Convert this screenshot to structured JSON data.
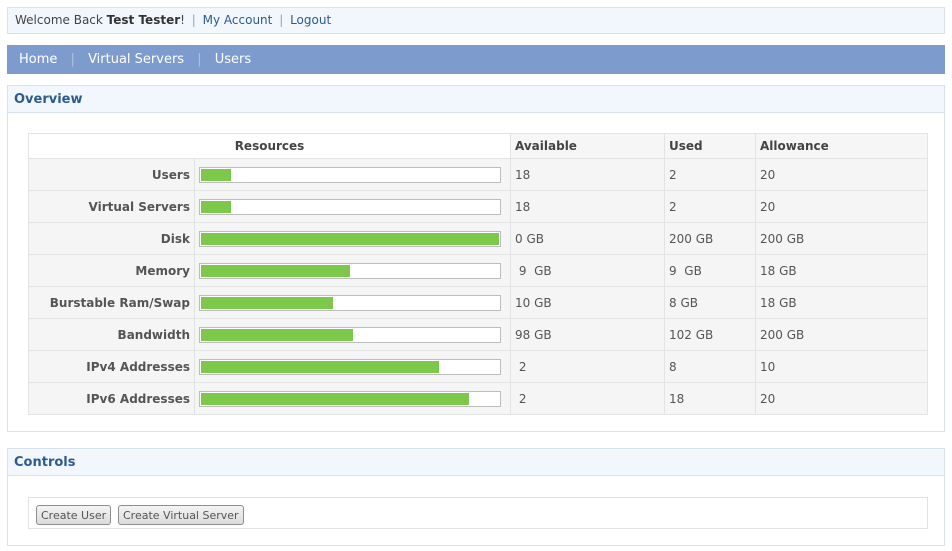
{
  "topbar": {
    "welcome_prefix": "Welcome Back",
    "user_name": "Test Tester",
    "welcome_suffix": "!",
    "sep": "|",
    "my_account": "My Account",
    "logout": "Logout"
  },
  "nav": {
    "items": [
      {
        "label": "Home"
      },
      {
        "label": "Virtual Servers"
      },
      {
        "label": "Users"
      }
    ],
    "sep": "|"
  },
  "overview": {
    "title": "Overview",
    "headers": {
      "resources": "Resources",
      "available": "Available",
      "used": "Used",
      "allowance": "Allowance"
    },
    "colors": {
      "bar_fill": "#7cc84b"
    },
    "rows": [
      {
        "label": "Users",
        "usage_fraction": 0.1,
        "available": "18",
        "used": "2",
        "allowance": "20"
      },
      {
        "label": "Virtual Servers",
        "usage_fraction": 0.1,
        "available": "18",
        "used": "2",
        "allowance": "20"
      },
      {
        "label": "Disk",
        "usage_fraction": 1.0,
        "available": "0 GB",
        "used": "200 GB",
        "allowance": "200 GB"
      },
      {
        "label": "Memory",
        "usage_fraction": 0.5,
        "available": " 9  GB",
        "used": "9  GB",
        "allowance": "18 GB"
      },
      {
        "label": "Burstable Ram/Swap",
        "usage_fraction": 0.444,
        "available": "10 GB",
        "used": "8 GB",
        "allowance": "18 GB"
      },
      {
        "label": "Bandwidth",
        "usage_fraction": 0.51,
        "available": "98 GB",
        "used": "102 GB",
        "allowance": "200 GB"
      },
      {
        "label": "IPv4 Addresses",
        "usage_fraction": 0.8,
        "available": " 2",
        "used": "8",
        "allowance": "10"
      },
      {
        "label": "IPv6 Addresses",
        "usage_fraction": 0.9,
        "available": " 2",
        "used": "18",
        "allowance": "20"
      }
    ]
  },
  "controls": {
    "title": "Controls",
    "create_user": "Create User",
    "create_virtual_server": "Create Virtual Server"
  }
}
